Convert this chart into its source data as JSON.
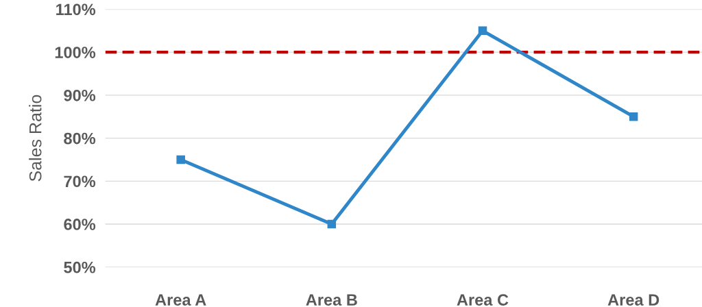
{
  "chart_data": {
    "type": "line",
    "ylabel": "Sales Ratio",
    "categories": [
      "Area A",
      "Area B",
      "Area C",
      "Area D"
    ],
    "series": [
      {
        "color": "#2f86c8",
        "values": [
          75,
          60,
          105,
          85
        ]
      }
    ],
    "marker": "square",
    "line_style": "solid",
    "ylim": [
      50,
      110
    ],
    "yticks": [
      {
        "value": 50,
        "label": "50%"
      },
      {
        "value": 60,
        "label": "60%"
      },
      {
        "value": 70,
        "label": "70%"
      },
      {
        "value": 80,
        "label": "80%"
      },
      {
        "value": 90,
        "label": "90%"
      },
      {
        "value": 100,
        "label": "100%"
      },
      {
        "value": 110,
        "label": "110%"
      }
    ],
    "grid": "y",
    "ref_lines": [
      {
        "axis": "y",
        "value": 100,
        "color": "#c00000",
        "line_style": "dashed"
      }
    ]
  }
}
